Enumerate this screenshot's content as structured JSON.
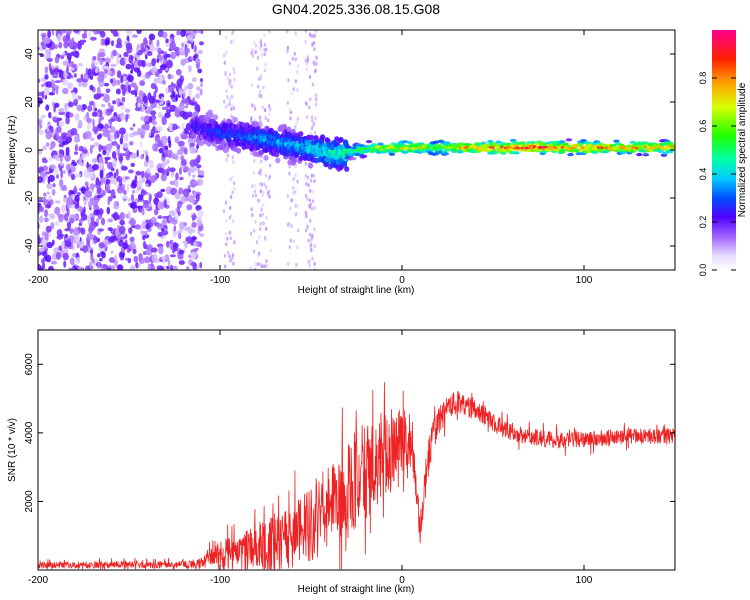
{
  "chart_data": [
    {
      "type": "heatmap",
      "title": "GN04.2025.336.08.15.G08",
      "xlabel": "Height of straight line (km)",
      "ylabel": "Frequency (Hz)",
      "xlim": [
        -200,
        150
      ],
      "ylim": [
        -50,
        50
      ],
      "xticks": [
        -200,
        -100,
        0,
        100
      ],
      "yticks": [
        -40,
        -20,
        0,
        20,
        40
      ],
      "colorbar": {
        "label": "Normalized spectral amplitude",
        "range": [
          0,
          1
        ],
        "ticks": [
          0.0,
          0.2,
          0.4,
          0.6,
          0.8
        ],
        "colormap": "rainbow"
      },
      "ridge_x": [
        -115,
        -100,
        -80,
        -60,
        -45,
        -35,
        -25,
        -10,
        0,
        20,
        60,
        100,
        150
      ],
      "ridge_freq": [
        10,
        7,
        5,
        2,
        0,
        -2,
        0,
        1,
        1,
        1,
        1,
        1,
        1
      ],
      "ridge_amplitude": [
        0.25,
        0.3,
        0.35,
        0.4,
        0.45,
        0.5,
        0.55,
        0.7,
        0.75,
        0.7,
        0.95,
        0.85,
        0.8
      ]
    },
    {
      "type": "line",
      "xlabel": "Height of straight line (km)",
      "ylabel": "SNR (10 * v/v)",
      "xlim": [
        -200,
        150
      ],
      "ylim": [
        0,
        7000
      ],
      "xticks": [
        -200,
        -100,
        0,
        100
      ],
      "yticks": [
        2000,
        4000,
        6000
      ],
      "color": "#ee2222",
      "series": [
        {
          "name": "SNR",
          "x": [
            -200,
            -180,
            -160,
            -140,
            -120,
            -110,
            -100,
            -90,
            -80,
            -70,
            -60,
            -50,
            -40,
            -30,
            -20,
            -15,
            -10,
            -5,
            0,
            5,
            8,
            10,
            12,
            15,
            20,
            30,
            40,
            50,
            60,
            80,
            100,
            120,
            150
          ],
          "mean": [
            150,
            150,
            160,
            150,
            160,
            200,
            450,
            500,
            650,
            700,
            900,
            1400,
            1800,
            2300,
            2900,
            3100,
            3300,
            3600,
            3900,
            3800,
            2400,
            900,
            2200,
            3500,
            4400,
            4900,
            4700,
            4300,
            4000,
            3800,
            3800,
            3900,
            3900
          ],
          "amp": [
            120,
            120,
            120,
            120,
            120,
            200,
            500,
            700,
            900,
            1100,
            1200,
            1400,
            1600,
            1800,
            1900,
            1600,
            1500,
            1400,
            1200,
            900,
            700,
            500,
            700,
            700,
            550,
            420,
            380,
            330,
            300,
            300,
            280,
            280,
            300
          ]
        }
      ]
    }
  ]
}
